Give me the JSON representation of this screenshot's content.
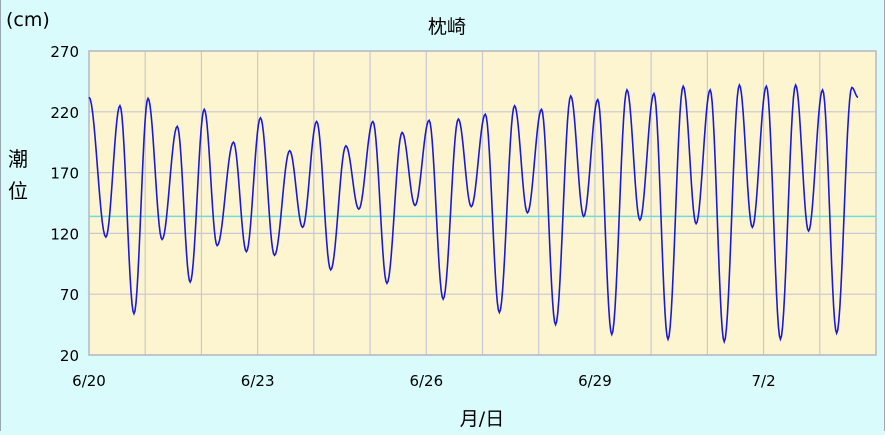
{
  "chart_data": {
    "type": "line",
    "title": "枕崎",
    "unit": "(cm)",
    "ylabel_chars": [
      "潮",
      "位"
    ],
    "xlabel": "月/日",
    "ylim": [
      20,
      270
    ],
    "yticks": [
      20,
      70,
      120,
      170,
      220,
      270
    ],
    "x_start_day": "6/20",
    "days_shown": 14,
    "xticks": [
      {
        "label": "6/20",
        "day": 0
      },
      {
        "label": "6/23",
        "day": 3
      },
      {
        "label": "6/26",
        "day": 6
      },
      {
        "label": "6/29",
        "day": 9
      },
      {
        "label": "7/2",
        "day": 12
      }
    ],
    "reference_level": 134,
    "colors": {
      "line": "#1a1ad6",
      "reference": "#6fdcdc",
      "plot_bg": "#fdf5cf",
      "grid": "#c8c8d4",
      "page_bg": "#d9fbfb"
    },
    "series": [
      {
        "extrema": [
          [
            0.0,
            232
          ],
          [
            0.3,
            117
          ],
          [
            0.55,
            225
          ],
          [
            0.8,
            54
          ],
          [
            1.05,
            231
          ],
          [
            1.3,
            115
          ],
          [
            1.57,
            208
          ],
          [
            1.8,
            80
          ],
          [
            2.05,
            222
          ],
          [
            2.28,
            110
          ],
          [
            2.57,
            195
          ],
          [
            2.8,
            105
          ],
          [
            3.05,
            215
          ],
          [
            3.3,
            102
          ],
          [
            3.57,
            188
          ],
          [
            3.8,
            125
          ],
          [
            4.05,
            212
          ],
          [
            4.3,
            90
          ],
          [
            4.57,
            192
          ],
          [
            4.8,
            140
          ],
          [
            5.05,
            212
          ],
          [
            5.3,
            79
          ],
          [
            5.57,
            203
          ],
          [
            5.8,
            143
          ],
          [
            6.05,
            213
          ],
          [
            6.3,
            66
          ],
          [
            6.57,
            214
          ],
          [
            6.8,
            142
          ],
          [
            7.05,
            218
          ],
          [
            7.3,
            55
          ],
          [
            7.57,
            225
          ],
          [
            7.8,
            137
          ],
          [
            8.05,
            222
          ],
          [
            8.3,
            45
          ],
          [
            8.57,
            233
          ],
          [
            8.8,
            134
          ],
          [
            9.05,
            230
          ],
          [
            9.3,
            37
          ],
          [
            9.57,
            238
          ],
          [
            9.8,
            131
          ],
          [
            10.05,
            235
          ],
          [
            10.3,
            33
          ],
          [
            10.57,
            241
          ],
          [
            10.8,
            128
          ],
          [
            11.05,
            238
          ],
          [
            11.3,
            31
          ],
          [
            11.57,
            242
          ],
          [
            11.8,
            125
          ],
          [
            12.05,
            241
          ],
          [
            12.3,
            33
          ],
          [
            12.57,
            242
          ],
          [
            12.8,
            122
          ],
          [
            13.05,
            238
          ],
          [
            13.3,
            38
          ],
          [
            13.57,
            240
          ],
          [
            13.68,
            232
          ]
        ]
      }
    ]
  }
}
